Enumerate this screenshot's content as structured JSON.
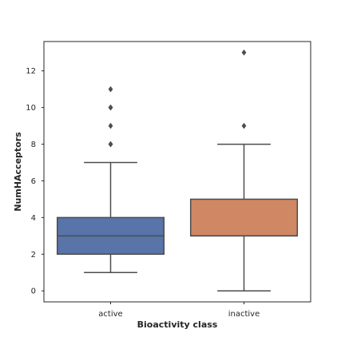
{
  "chart_data": {
    "type": "box",
    "xlabel": "Bioactivity class",
    "ylabel": "NumHAcceptors",
    "categories": [
      "active",
      "inactive"
    ],
    "ylim": [
      -0.6,
      13.6
    ],
    "yticks": [
      0,
      2,
      4,
      6,
      8,
      10,
      12
    ],
    "grid": false,
    "boxes": [
      {
        "category": "active",
        "color": "#5874a8",
        "whisker_low": 1,
        "q1": 2,
        "median": 3,
        "q3": 4,
        "whisker_high": 7,
        "outliers": [
          8,
          8,
          9,
          10,
          10,
          11
        ]
      },
      {
        "category": "inactive",
        "color": "#cf8863",
        "whisker_low": 0,
        "q1": 3,
        "median": 3,
        "q3": 5,
        "whisker_high": 8,
        "outliers": [
          9,
          13
        ]
      }
    ]
  }
}
